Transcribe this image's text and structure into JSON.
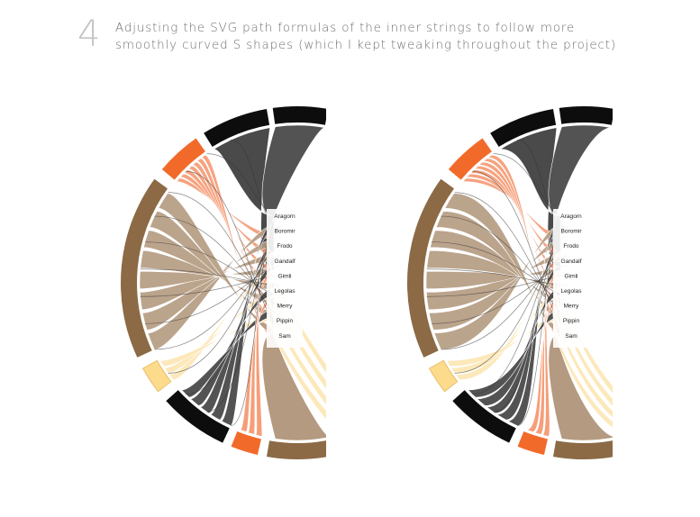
{
  "step": {
    "number": "4",
    "caption_line1": "Adjusting the SVG path formulas of the inner strings to follow more",
    "caption_line2": "smoothly curved S shapes (which I kept tweaking throughout the project)"
  },
  "diagrams": [
    {
      "variant": "before"
    },
    {
      "variant": "after"
    }
  ],
  "characters": [
    "Aragorn",
    "Boromir",
    "Frodo",
    "Gandalf",
    "Gimli",
    "Legolas",
    "Merry",
    "Pippin",
    "Sam"
  ],
  "colors": {
    "black": "#0d0d0d",
    "black_ribbon": "#4a4a4a",
    "orange": "#f26a2a",
    "orange_ribbon": "#f4936a",
    "brown": "#8b6a45",
    "brown_ribbon": "#b49a80",
    "yellow": "#fddb8c",
    "yellow_ribbon": "#fce6b3"
  }
}
